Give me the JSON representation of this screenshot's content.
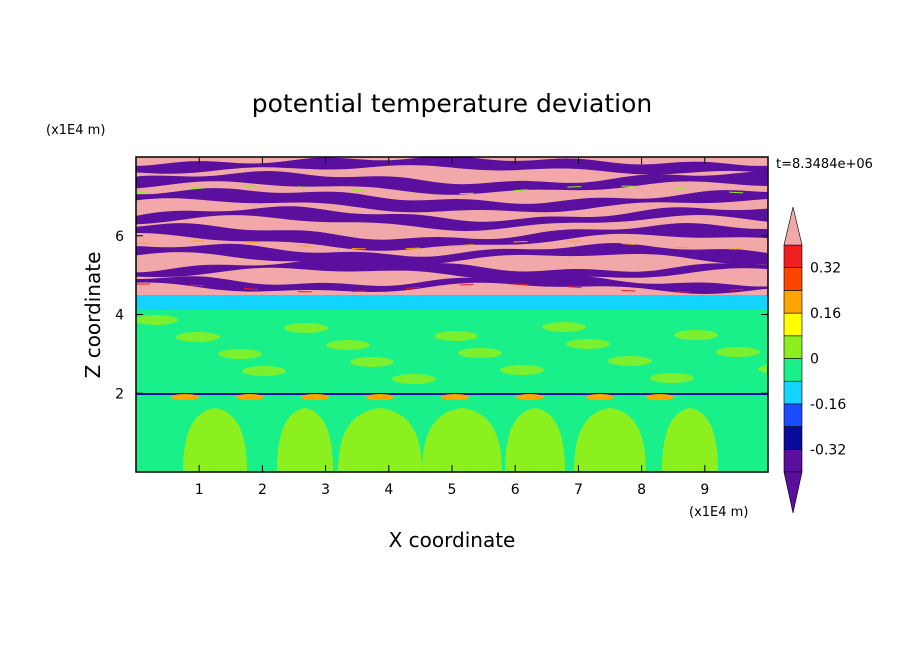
{
  "chart_data": {
    "type": "heatmap",
    "title": "potential temperature deviation",
    "xlabel": "X coordinate",
    "ylabel": "Z coordinate",
    "x_unit": "(x1E4 m)",
    "y_unit": "(x1E4 m)",
    "xlim": [
      0,
      10
    ],
    "ylim": [
      0,
      8
    ],
    "x_ticks": [
      1,
      2,
      3,
      4,
      5,
      6,
      7,
      8,
      9
    ],
    "y_ticks": [
      2,
      4,
      6
    ],
    "time_label": "t=8.3484e+06",
    "colorbar": {
      "tick_labels": [
        "0.32",
        "0.16",
        "0",
        "-0.16",
        "-0.32"
      ],
      "tick_values": [
        0.32,
        0.16,
        0,
        -0.16,
        -0.32
      ],
      "levels": [
        -0.4,
        -0.32,
        -0.24,
        -0.16,
        -0.08,
        0,
        0.08,
        0.16,
        0.24,
        0.32,
        0.4
      ],
      "colors": [
        "#5a0f9e",
        "#0a0a9e",
        "#1a4dff",
        "#13d3ff",
        "#19f08a",
        "#8cf01f",
        "#ffff00",
        "#ffa500",
        "#ff4500",
        "#ef1f1f"
      ],
      "over_color": "#f2a8a8",
      "under_color": "#5a0f9e"
    },
    "field": {
      "upper_layer": {
        "z_range": [
          4.5,
          8.0
        ],
        "value": "alternating >0.40 and <-0.40 bands"
      },
      "transition_layer": {
        "z_range": [
          4.1,
          4.5
        ],
        "value": -0.12
      },
      "middle_layer": {
        "z_range": [
          2.0,
          4.1
        ],
        "value": -0.04
      },
      "interface": {
        "z": 2.0,
        "value": -0.32
      },
      "lower_layer": {
        "z_range": [
          0,
          2.0
        ],
        "value": -0.04,
        "plumes_value": 0.04
      }
    }
  }
}
